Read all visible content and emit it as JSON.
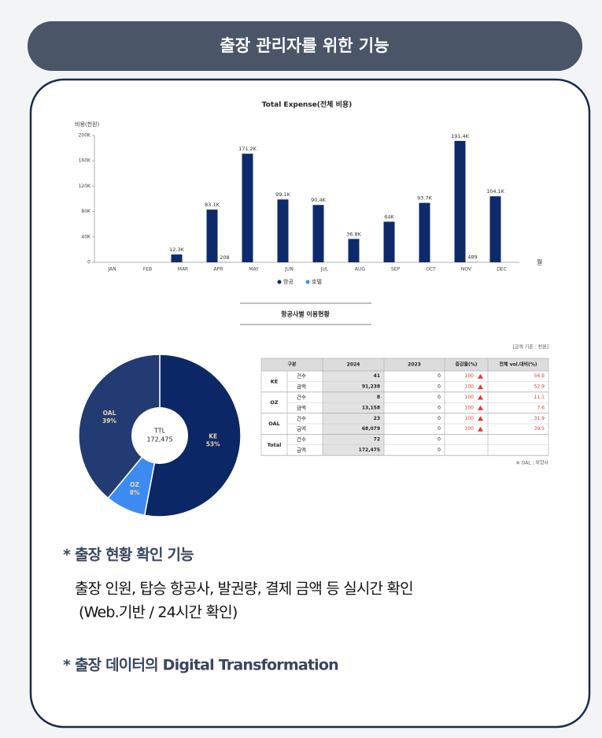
{
  "header": {
    "title": "출장 관리자를 위한 기능"
  },
  "chart_data": [
    {
      "type": "bar",
      "title": "Total Expense(전체 비용)",
      "y_label": "비용(천원)",
      "x_unit_label": "월",
      "categories": [
        "JAN",
        "FEB",
        "MAR",
        "APR",
        "MAY",
        "JUN",
        "JUL",
        "AUG",
        "SEP",
        "OCT",
        "NOV",
        "DEC"
      ],
      "series": [
        {
          "name": "항공",
          "color": "#0e2a6b",
          "values": [
            null,
            null,
            12300,
            83100,
            171200,
            99100,
            90400,
            36800,
            64000,
            93700,
            191400,
            104100
          ],
          "value_labels": [
            null,
            null,
            "12.3K",
            "83.1K",
            "171.2K",
            "99.1K",
            "90.4K",
            "36.8K",
            "64K",
            "93.7K",
            "191.4K",
            "104.1K"
          ]
        },
        {
          "name": "호텔",
          "color": "#3d8bf0",
          "values": [
            null,
            null,
            null,
            208,
            null,
            null,
            null,
            null,
            null,
            null,
            489,
            null
          ],
          "value_labels": [
            null,
            null,
            null,
            "208",
            null,
            null,
            null,
            null,
            null,
            null,
            "489",
            null
          ]
        }
      ],
      "ylim": [
        0,
        200000
      ],
      "yticks": [
        0,
        {
          "value": 40000,
          "label": "40K"
        },
        {
          "value": 80000,
          "label": "80K"
        },
        {
          "value": 120000,
          "label": "120K"
        },
        {
          "value": 160000,
          "label": "160K"
        },
        {
          "value": 200000,
          "label": "200K"
        }
      ],
      "legend": "bottom"
    },
    {
      "type": "pie",
      "title": "항공사별 이용현황",
      "categories": [
        "KE",
        "OZ",
        "OAL"
      ],
      "values": [
        53,
        8,
        39
      ],
      "value_labels": [
        "53%",
        "8%",
        "39%"
      ],
      "colors": [
        "#0c2766",
        "#3d8bf0",
        "#223b72"
      ],
      "center_label": "TTL",
      "center_value": "172,475"
    }
  ],
  "table": {
    "note": "[금액 기준 : 천원]",
    "headers": [
      "구분",
      "2024",
      "2023",
      "증감율(%)",
      "전체 vol.대비(%)"
    ],
    "groups": [
      {
        "name": "KE",
        "rows": [
          {
            "label": "건수",
            "cells": [
              "41",
              "0",
              "100",
              "56.9"
            ]
          },
          {
            "label": "금액",
            "cells": [
              "91,238",
              "0",
              "100",
              "52.9"
            ]
          }
        ]
      },
      {
        "name": "OZ",
        "rows": [
          {
            "label": "건수",
            "cells": [
              "8",
              "0",
              "100",
              "11.1"
            ]
          },
          {
            "label": "금액",
            "cells": [
              "13,158",
              "0",
              "100",
              "7.6"
            ]
          }
        ]
      },
      {
        "name": "OAL",
        "rows": [
          {
            "label": "건수",
            "cells": [
              "23",
              "0",
              "100",
              "31.9"
            ]
          },
          {
            "label": "금액",
            "cells": [
              "68,079",
              "0",
              "100",
              "39.5"
            ]
          }
        ]
      },
      {
        "name": "Total",
        "rows": [
          {
            "label": "건수",
            "cells": [
              "72",
              "0"
            ]
          },
          {
            "label": "금액",
            "cells": [
              "172,475",
              "0"
            ]
          }
        ]
      }
    ],
    "footnote": "※ OAL : 외항사"
  },
  "features": [
    {
      "heading": "* 출장 현황 확인 기능",
      "lines": [
        "출장 인원, 탑승 항공사, 발권량, 결제 금액 등 실시간 확인",
        "(Web.기반 / 24시간 확인)"
      ]
    },
    {
      "heading": "* 출장 데이터의 Digital Transformation",
      "lines": []
    }
  ]
}
